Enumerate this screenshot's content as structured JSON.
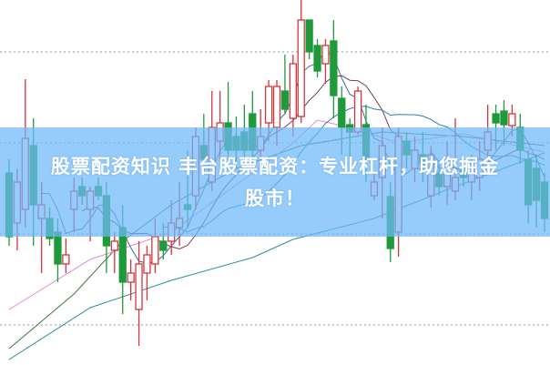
{
  "banner": {
    "line1": "股票配资知识 丰台股票配资：专业杠杆，助您掘金",
    "line2": "股市！"
  },
  "colors": {
    "up": "#d8343a",
    "down": "#1f9a3a",
    "band": "#8ecafa",
    "grid": "#9a9a9a",
    "ma5": "#3b6e8f",
    "ma10": "#7b3b5a",
    "ma20": "#2c7fb0",
    "trend_green": "#3d7a3d",
    "trend_teal": "#2a8ea0",
    "trend_pink": "#e08ad8"
  },
  "chart_data": {
    "type": "candlestick",
    "title": "",
    "xlabel": "",
    "ylabel": "",
    "ylim": [
      2.8,
      22.85
    ],
    "grid": {
      "horizontal": true,
      "style": "dotted",
      "values": [
        5,
        10,
        15,
        20
      ]
    },
    "candles": [
      [
        13.35,
        14.1,
        9.35,
        9.85
      ],
      [
        10.6,
        13.6,
        9.1,
        12.85
      ],
      [
        11.35,
        18.5,
        10.35,
        15.25
      ],
      [
        14.85,
        16.35,
        9.35,
        11.6
      ],
      [
        10.85,
        12.85,
        7.85,
        11.6
      ],
      [
        10.85,
        11.45,
        9.35,
        9.75
      ],
      [
        10.1,
        10.85,
        7.35,
        8.35
      ],
      [
        8.35,
        9.75,
        7.85,
        8.85
      ],
      [
        11.35,
        13.1,
        10.1,
        12.35
      ],
      [
        12.6,
        13.1,
        11.6,
        12.1
      ],
      [
        11.35,
        12.6,
        9.6,
        12.35
      ],
      [
        12.6,
        13.1,
        11.85,
        12.1
      ],
      [
        12.1,
        12.85,
        7.85,
        9.35
      ],
      [
        9.1,
        10.1,
        7.85,
        9.6
      ],
      [
        10.35,
        11.6,
        5.6,
        7.35
      ],
      [
        7.35,
        8.6,
        6.35,
        7.85
      ],
      [
        5.85,
        9.6,
        3.85,
        8.35
      ],
      [
        7.85,
        9.35,
        6.35,
        8.85
      ],
      [
        8.35,
        10.85,
        7.85,
        9.85
      ],
      [
        9.6,
        10.6,
        8.6,
        9.1
      ],
      [
        9.6,
        11.85,
        8.85,
        10.6
      ],
      [
        10.35,
        12.85,
        9.35,
        10.85
      ],
      [
        11.6,
        14.6,
        10.35,
        11.35
      ],
      [
        12.1,
        15.85,
        11.35,
        15.35
      ],
      [
        14.85,
        16.6,
        13.35,
        14.1
      ],
      [
        12.85,
        17.85,
        12.35,
        15.85
      ],
      [
        15.1,
        17.85,
        14.1,
        16.1
      ],
      [
        16.1,
        18.35,
        13.6,
        14.6
      ],
      [
        15.35,
        16.45,
        13.6,
        14.6
      ],
      [
        15.6,
        17.1,
        14.1,
        14.6
      ],
      [
        16.6,
        17.85,
        13.6,
        14.6
      ],
      [
        14.6,
        16.85,
        13.85,
        15.35
      ],
      [
        16.1,
        18.45,
        15.1,
        18.1
      ],
      [
        15.85,
        18.45,
        14.85,
        18.1
      ],
      [
        17.85,
        19.85,
        16.6,
        16.85
      ],
      [
        16.35,
        19.85,
        15.35,
        19.35
      ],
      [
        16.45,
        22.85,
        16.1,
        21.75
      ],
      [
        21.75,
        21.75,
        19.6,
        20.0
      ],
      [
        20.35,
        20.7,
        18.6,
        18.95
      ],
      [
        19.35,
        20.7,
        18.25,
        20.35
      ],
      [
        20.6,
        21.75,
        16.35,
        17.6
      ],
      [
        17.45,
        18.1,
        14.35,
        15.85
      ],
      [
        16.0,
        16.35,
        14.25,
        15.6
      ],
      [
        15.6,
        18.1,
        15.45,
        17.85
      ],
      [
        16.0,
        17.1,
        12.85,
        14.1
      ],
      [
        12.1,
        13.35,
        11.85,
        12.85
      ],
      [
        13.1,
        15.85,
        10.85,
        14.85
      ],
      [
        12.05,
        12.85,
        8.45,
        9.2
      ],
      [
        10.1,
        15.85,
        8.75,
        15.35
      ],
      [
        15.1,
        15.6,
        13.6,
        14.35
      ],
      [
        13.6,
        15.35,
        12.85,
        14.6
      ],
      [
        14.35,
        15.6,
        12.85,
        13.85
      ],
      [
        12.1,
        14.85,
        11.45,
        14.35
      ],
      [
        13.35,
        13.85,
        12.1,
        12.6
      ],
      [
        12.6,
        15.1,
        11.6,
        14.1
      ],
      [
        12.35,
        16.35,
        11.85,
        13.1
      ],
      [
        13.6,
        14.1,
        12.6,
        13.1
      ],
      [
        12.85,
        14.35,
        11.85,
        13.6
      ],
      [
        13.1,
        15.1,
        12.35,
        14.1
      ],
      [
        14.6,
        17.1,
        14.1,
        15.6
      ],
      [
        16.6,
        17.1,
        14.6,
        16.1
      ],
      [
        16.75,
        17.35,
        14.85,
        16.0
      ],
      [
        15.95,
        17.1,
        15.35,
        16.6
      ],
      [
        15.85,
        16.6,
        13.85,
        14.6
      ],
      [
        14.1,
        14.6,
        10.6,
        11.6
      ],
      [
        13.6,
        14.35,
        10.35,
        11.85
      ],
      [
        12.85,
        13.35,
        10.1,
        10.85
      ]
    ],
    "candle_fields": [
      "open",
      "high",
      "low",
      "close"
    ],
    "moving_averages": [
      5,
      10,
      20
    ],
    "trend_lines": {
      "teal": [
        [
          0,
          3.1
        ],
        [
          10,
          5.95
        ],
        [
          20,
          7.45
        ],
        [
          30,
          8.7
        ],
        [
          35,
          9.7
        ],
        [
          45,
          10.85
        ],
        [
          55,
          12.6
        ],
        [
          66,
          14.45
        ]
      ],
      "green": [
        [
          0,
          3.7
        ],
        [
          8,
          6.7
        ],
        [
          14,
          9.6
        ],
        [
          20,
          11.6
        ],
        [
          28,
          13.6
        ],
        [
          36,
          14.85
        ],
        [
          46,
          15.6
        ],
        [
          56,
          15.35
        ],
        [
          66,
          14.85
        ]
      ],
      "pink": [
        [
          0,
          5.85
        ],
        [
          10,
          8.6
        ],
        [
          20,
          10.1
        ],
        [
          30,
          13.35
        ],
        [
          35,
          15.0
        ],
        [
          38,
          16.25
        ],
        [
          42,
          15.85
        ],
        [
          48,
          15.0
        ],
        [
          56,
          15.5
        ],
        [
          66,
          14.5
        ]
      ]
    }
  }
}
